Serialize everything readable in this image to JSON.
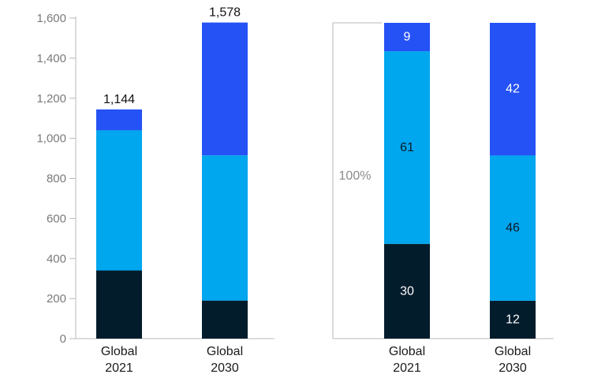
{
  "colors": {
    "dark_navy": "#031c2c",
    "light_blue": "#00a6ee",
    "royal_blue": "#2552f5",
    "axis": "#b8b8b8",
    "text": "#111111"
  },
  "chart_data": [
    {
      "type": "bar",
      "stacked": true,
      "categories": [
        [
          "Global",
          "2021"
        ],
        [
          "Global",
          "2030"
        ]
      ],
      "series": [
        {
          "color": "#031c2c",
          "values": [
            340,
            190
          ]
        },
        {
          "color": "#00a6ee",
          "values": [
            700,
            725
          ]
        },
        {
          "color": "#2552f5",
          "values": [
            104,
            663
          ]
        }
      ],
      "totals": [
        "1,144",
        "1,578"
      ],
      "ylim": [
        0,
        1600
      ],
      "yticks": [
        0,
        200,
        400,
        600,
        800,
        1000,
        1200,
        1400,
        1600
      ],
      "ytick_labels": [
        "0",
        "200",
        "400",
        "600",
        "800",
        "1,000",
        "1,200",
        "1,400",
        "1,600"
      ],
      "grid": false
    },
    {
      "type": "bar",
      "stacked": true,
      "percent": true,
      "categories": [
        [
          "Global",
          "2021"
        ],
        [
          "Global",
          "2030"
        ]
      ],
      "series": [
        {
          "color": "#031c2c",
          "values": [
            30,
            12
          ],
          "labels": [
            "30",
            "12"
          ]
        },
        {
          "color": "#00a6ee",
          "values": [
            61,
            46
          ],
          "labels": [
            "61",
            "46"
          ]
        },
        {
          "color": "#2552f5",
          "values": [
            9,
            42
          ],
          "labels": [
            "9",
            "42"
          ]
        }
      ],
      "reference_label": "100%",
      "grid": false
    }
  ]
}
